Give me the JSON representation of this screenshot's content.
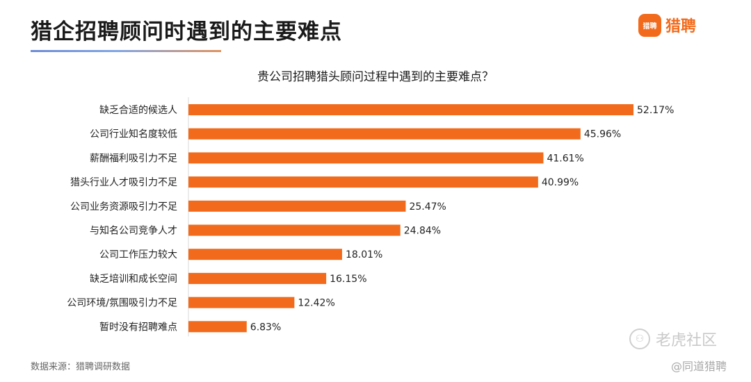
{
  "header": {
    "title": "猎企招聘顾问时遇到的主要难点",
    "brand_logo_text": "猎聘",
    "brand_name": "猎聘"
  },
  "footer": {
    "source": "数据来源：猎聘调研数据"
  },
  "watermarks": {
    "primary": "老虎社区",
    "secondary": "@同道猎聘"
  },
  "colors": {
    "bar": "#f26a1b",
    "brand": "#f26a1b"
  },
  "chart_data": {
    "type": "bar",
    "orientation": "horizontal",
    "title": "贵公司招聘猎头顾问过程中遇到的主要难点？",
    "categories": [
      "缺乏合适的候选人",
      "公司行业知名度较低",
      "薪酬福利吸引力不足",
      "猎头行业人才吸引力不足",
      "公司业务资源吸引力不足",
      "与知名公司竞争人才",
      "公司工作压力较大",
      "缺乏培训和成长空间",
      "公司环境/氛围吸引力不足",
      "暂时没有招聘难点"
    ],
    "values": [
      52.17,
      45.96,
      41.61,
      40.99,
      25.47,
      24.84,
      18.01,
      16.15,
      12.42,
      6.83
    ],
    "value_labels": [
      "52.17%",
      "45.96%",
      "41.61%",
      "40.99%",
      "25.47%",
      "24.84%",
      "18.01%",
      "16.15%",
      "12.42%",
      "6.83%"
    ],
    "unit": "%",
    "xlim": [
      0,
      52.17
    ],
    "grid": false,
    "legend": "none"
  }
}
